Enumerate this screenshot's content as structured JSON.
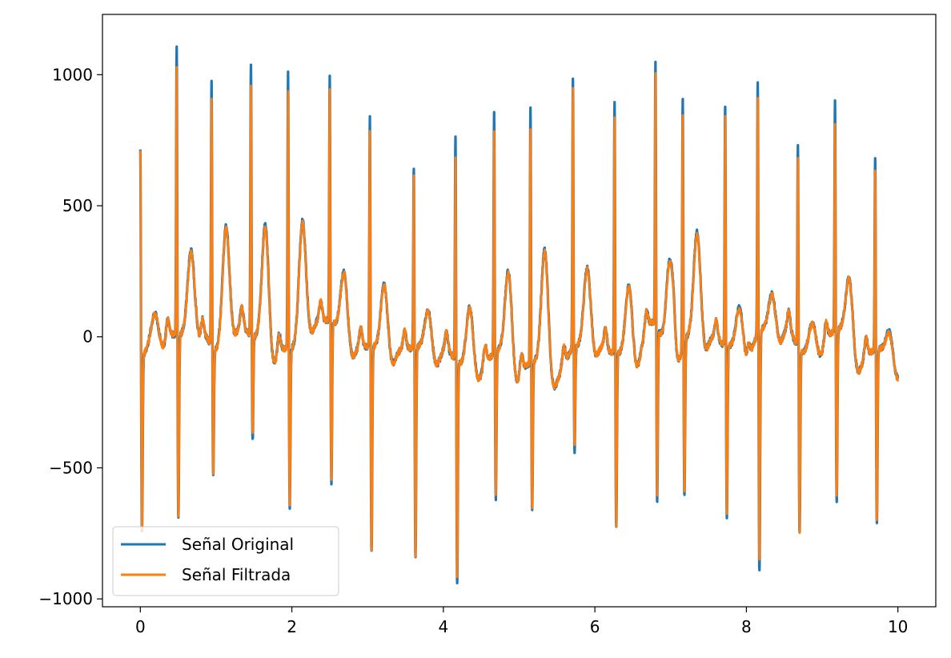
{
  "chart_data": {
    "type": "line",
    "title": "",
    "xlabel": "",
    "ylabel": "",
    "xlim": [
      -0.5,
      10.5
    ],
    "ylim": [
      -1030,
      1230
    ],
    "xticks": [
      0,
      2,
      4,
      6,
      8,
      10
    ],
    "xtick_labels": [
      "0",
      "2",
      "4",
      "6",
      "8",
      "10"
    ],
    "yticks": [
      -1000,
      -500,
      0,
      500,
      1000
    ],
    "ytick_labels": [
      "−1000",
      "−500",
      "0",
      "500",
      "1000"
    ],
    "grid": false,
    "legend_position": "lower-left",
    "series": [
      {
        "name": "Señal Original",
        "color": "#1f77b4",
        "beats": [
          {
            "t": 0.0,
            "r": 810,
            "s": -670,
            "tw": 80
          },
          {
            "t": 0.48,
            "r": 1120,
            "s": -700,
            "tw": 290
          },
          {
            "t": 0.94,
            "r": 1020,
            "s": -490,
            "tw": 420
          },
          {
            "t": 1.46,
            "r": 1050,
            "s": -400,
            "tw": 460
          },
          {
            "t": 1.95,
            "r": 1075,
            "s": -610,
            "tw": 425
          },
          {
            "t": 2.5,
            "r": 950,
            "s": -620,
            "tw": 260
          },
          {
            "t": 3.03,
            "r": 900,
            "s": -790,
            "tw": 250
          },
          {
            "t": 3.61,
            "r": 720,
            "s": -810,
            "tw": 145
          },
          {
            "t": 4.16,
            "r": 880,
            "s": -840,
            "tw": 225
          },
          {
            "t": 4.67,
            "r": 935,
            "s": -560,
            "tw": 335
          },
          {
            "t": 5.15,
            "r": 990,
            "s": -570,
            "tw": 450
          },
          {
            "t": 5.71,
            "r": 1040,
            "s": -400,
            "tw": 290
          },
          {
            "t": 6.26,
            "r": 980,
            "s": -670,
            "tw": 275
          },
          {
            "t": 6.8,
            "r": 1020,
            "s": -665,
            "tw": 355
          },
          {
            "t": 7.16,
            "r": 960,
            "s": -590,
            "tw": 405
          },
          {
            "t": 7.72,
            "r": 940,
            "s": -665,
            "tw": 155
          },
          {
            "t": 8.15,
            "r": 1005,
            "s": -920,
            "tw": 135
          },
          {
            "t": 8.68,
            "r": 800,
            "s": -705,
            "tw": 95
          },
          {
            "t": 9.17,
            "r": 900,
            "s": -655,
            "tw": 245
          },
          {
            "t": 9.7,
            "r": 760,
            "s": -660,
            "tw": 100
          }
        ]
      },
      {
        "name": "Señal Filtrada",
        "color": "#ff7f0e",
        "beats": [
          {
            "t": 0.0,
            "r": 805,
            "s": -660,
            "tw": 78
          },
          {
            "t": 0.48,
            "r": 1040,
            "s": -690,
            "tw": 285
          },
          {
            "t": 0.94,
            "r": 955,
            "s": -480,
            "tw": 410
          },
          {
            "t": 1.46,
            "r": 960,
            "s": -380,
            "tw": 450
          },
          {
            "t": 1.95,
            "r": 1010,
            "s": -600,
            "tw": 420
          },
          {
            "t": 2.5,
            "r": 905,
            "s": -610,
            "tw": 255
          },
          {
            "t": 3.03,
            "r": 850,
            "s": -770,
            "tw": 245
          },
          {
            "t": 3.61,
            "r": 690,
            "s": -800,
            "tw": 140
          },
          {
            "t": 4.16,
            "r": 795,
            "s": -820,
            "tw": 220
          },
          {
            "t": 4.67,
            "r": 870,
            "s": -540,
            "tw": 330
          },
          {
            "t": 5.15,
            "r": 905,
            "s": -560,
            "tw": 440
          },
          {
            "t": 5.71,
            "r": 1010,
            "s": -390,
            "tw": 285
          },
          {
            "t": 6.26,
            "r": 920,
            "s": -655,
            "tw": 270
          },
          {
            "t": 6.8,
            "r": 985,
            "s": -640,
            "tw": 345
          },
          {
            "t": 7.16,
            "r": 905,
            "s": -570,
            "tw": 395
          },
          {
            "t": 7.72,
            "r": 890,
            "s": -650,
            "tw": 150
          },
          {
            "t": 8.15,
            "r": 930,
            "s": -880,
            "tw": 130
          },
          {
            "t": 8.68,
            "r": 755,
            "s": -690,
            "tw": 90
          },
          {
            "t": 9.17,
            "r": 820,
            "s": -640,
            "tw": 240
          },
          {
            "t": 9.7,
            "r": 710,
            "s": -650,
            "tw": 95
          }
        ]
      }
    ]
  }
}
